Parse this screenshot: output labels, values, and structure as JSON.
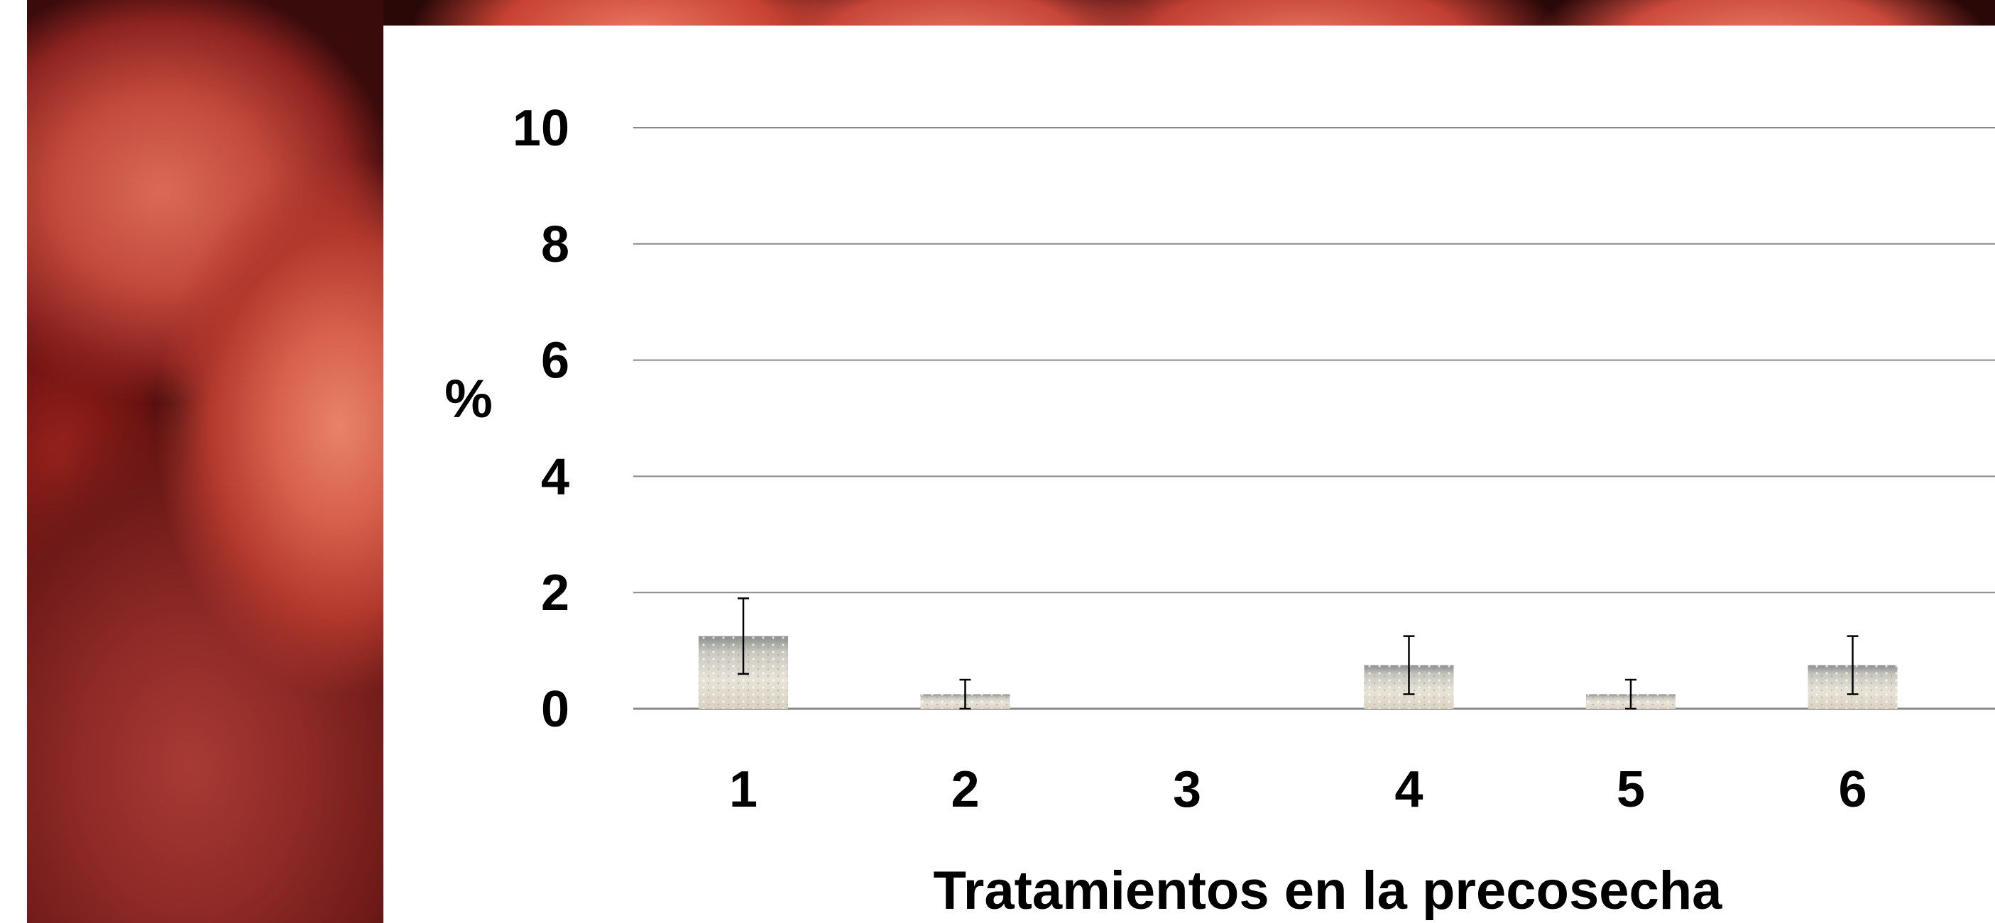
{
  "chart_data": {
    "type": "bar",
    "title": "",
    "xlabel": "Tratamientos en la precosecha",
    "ylabel": "%",
    "ylim": [
      0,
      10
    ],
    "yticks": [
      0,
      2,
      4,
      6,
      8,
      10
    ],
    "categories": [
      "1",
      "2",
      "3",
      "4",
      "5",
      "6"
    ],
    "values": [
      1.25,
      0.25,
      0,
      0.75,
      0.25,
      0.75
    ],
    "errors": [
      0.65,
      0.25,
      0,
      0.5,
      0.25,
      0.5
    ],
    "grid": true,
    "legend": "none",
    "colors": {
      "gridline": "#888888",
      "bar_top": "#8a8f8c",
      "bar_fill": "#e7e2d6",
      "error_bar": "#000000"
    }
  }
}
